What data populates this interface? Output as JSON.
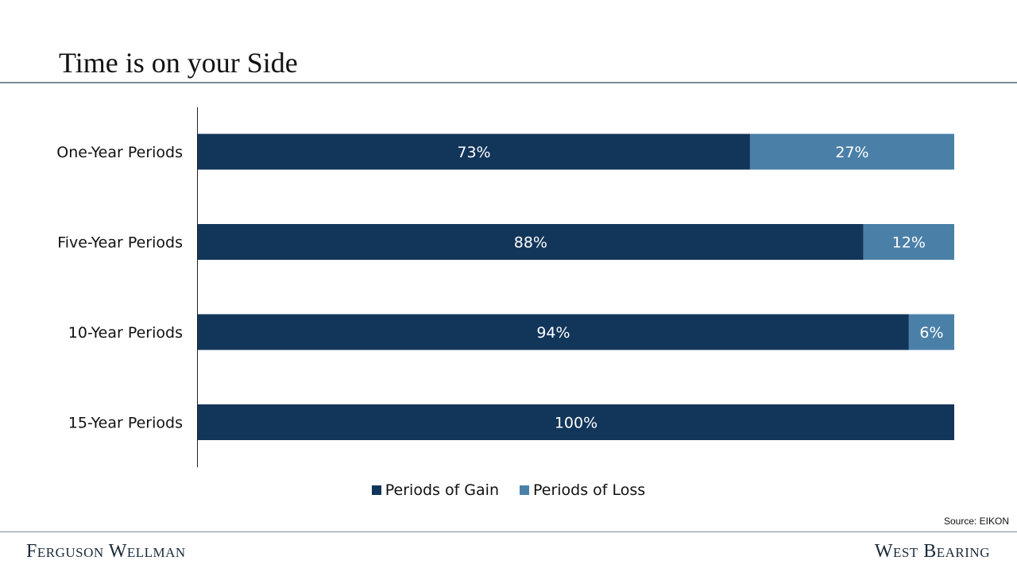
{
  "slide": {
    "title": "Time is on your Side",
    "source": "Source: EIKON",
    "brand_left": "Ferguson Wellman",
    "brand_right": "West Bearing"
  },
  "colors": {
    "gain": "#12355a",
    "loss": "#4a80a8",
    "rule": "#7a8c99"
  },
  "chart_data": {
    "type": "bar",
    "orientation": "horizontal",
    "stacked": true,
    "categories": [
      "One-Year Periods",
      "Five-Year Periods",
      "10-Year Periods",
      "15-Year Periods"
    ],
    "series": [
      {
        "name": "Periods of Gain",
        "values": [
          73,
          88,
          94,
          100
        ],
        "labels": [
          "73%",
          "88%",
          "94%",
          "100%"
        ],
        "color": "#12355a"
      },
      {
        "name": "Periods of Loss",
        "values": [
          27,
          12,
          6,
          0
        ],
        "labels": [
          "27%",
          "12%",
          "6%",
          ""
        ],
        "color": "#4a80a8"
      }
    ],
    "xlim": [
      0,
      100
    ],
    "grid": false,
    "legend": "bottom"
  }
}
